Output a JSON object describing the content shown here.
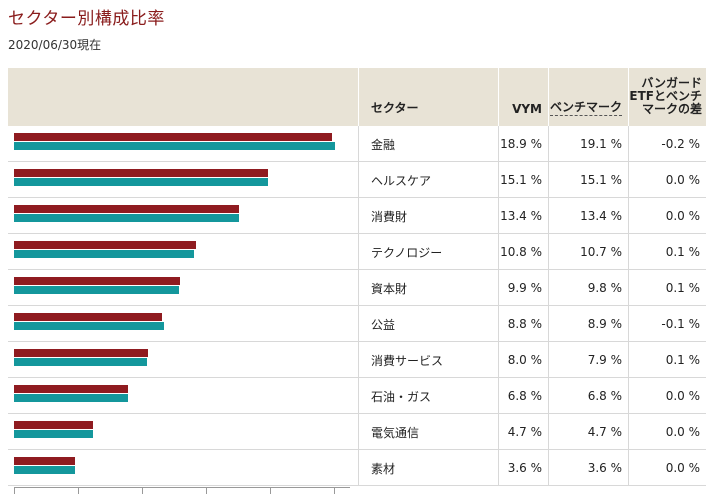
{
  "title": "セクター別構成比率",
  "as_of": "2020/06/30現在",
  "headers": {
    "sector": "セクター",
    "vym": "VYM",
    "benchmark": "ベンチマーク",
    "diff": [
      "バンガード",
      "ETFとベンチ",
      "マークの差"
    ]
  },
  "colors": {
    "vym": "#8f1b20",
    "benchmark": "#14979c",
    "header_bg": "#e8e3d6",
    "title": "#8a1c1c"
  },
  "chart_data": {
    "type": "bar",
    "orientation": "horizontal",
    "categories": [
      "金融",
      "ヘルスケア",
      "消費財",
      "テクノロジー",
      "資本財",
      "公益",
      "消費サービス",
      "石油・ガス",
      "電気通信",
      "素材"
    ],
    "series": [
      {
        "name": "VYM",
        "values": [
          18.9,
          15.1,
          13.4,
          10.8,
          9.9,
          8.8,
          8.0,
          6.8,
          4.7,
          3.6
        ]
      },
      {
        "name": "ベンチマーク",
        "values": [
          19.1,
          15.1,
          13.4,
          10.7,
          9.8,
          8.9,
          7.9,
          6.8,
          4.7,
          3.6
        ]
      }
    ],
    "xlim": [
      0,
      20
    ]
  },
  "rows": [
    {
      "sector": "金融",
      "vym": "18.9 %",
      "bm": "19.1 %",
      "diff": "-0.2 %"
    },
    {
      "sector": "ヘルスケア",
      "vym": "15.1 %",
      "bm": "15.1 %",
      "diff": "0.0 %"
    },
    {
      "sector": "消費財",
      "vym": "13.4 %",
      "bm": "13.4 %",
      "diff": "0.0 %"
    },
    {
      "sector": "テクノロジー",
      "vym": "10.8 %",
      "bm": "10.7 %",
      "diff": "0.1 %"
    },
    {
      "sector": "資本財",
      "vym": "9.9 %",
      "bm": "9.8 %",
      "diff": "0.1 %"
    },
    {
      "sector": "公益",
      "vym": "8.8 %",
      "bm": "8.9 %",
      "diff": "-0.1 %"
    },
    {
      "sector": "消費サービス",
      "vym": "8.0 %",
      "bm": "7.9 %",
      "diff": "0.1 %"
    },
    {
      "sector": "石油・ガス",
      "vym": "6.8 %",
      "bm": "6.8 %",
      "diff": "0.0 %"
    },
    {
      "sector": "電気通信",
      "vym": "4.7 %",
      "bm": "4.7 %",
      "diff": "0.0 %"
    },
    {
      "sector": "素材",
      "vym": "3.6 %",
      "bm": "3.6 %",
      "diff": "0.0 %"
    }
  ]
}
